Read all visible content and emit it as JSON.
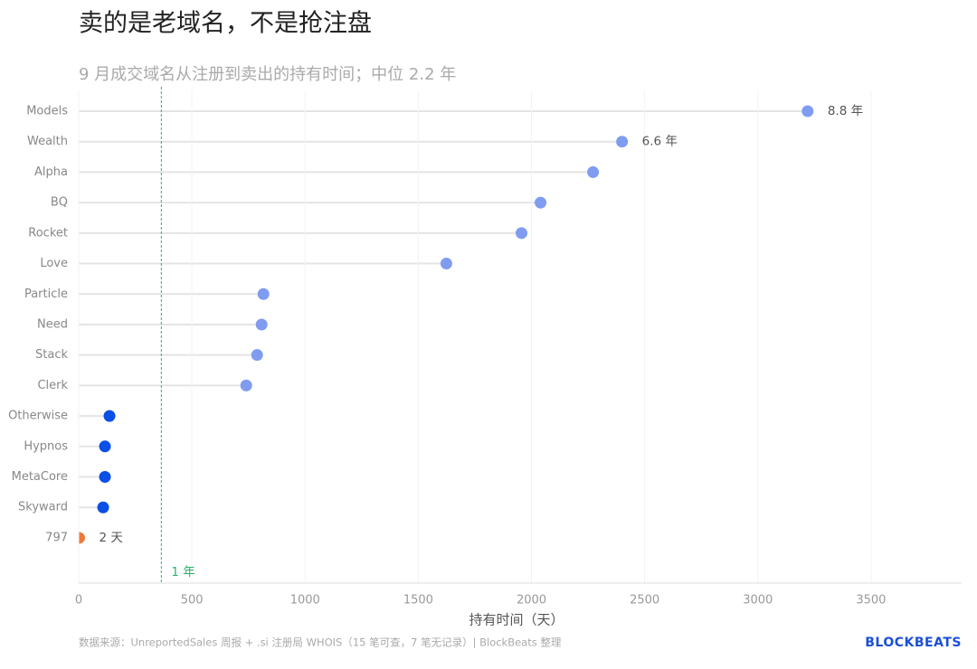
{
  "chart_data": {
    "type": "lollipop",
    "title": "卖的是老域名，不是抢注盘",
    "subtitle": "9 月成交域名从注册到卖出的持有时间；中位 2.2 年",
    "x_label": "持有时间（天）",
    "source": "数据来源：UnreportedSales 周报 + .si 注册局 WHOIS（15 笔可查，7 笔无记录）| BlockBeats 整理",
    "logo": "BLOCKBEATS",
    "categories": [
      "Models",
      "Wealth",
      "Alpha",
      "BQ",
      "Rocket",
      "Love",
      "Particle",
      "Need",
      "Stack",
      "Clerk",
      "Otherwise",
      "Hypnos",
      "MetaCore",
      "Skyward",
      "797"
    ],
    "values": [
      3220,
      2400,
      2272,
      2040,
      1956,
      1624,
      816,
      808,
      788,
      740,
      136,
      116,
      116,
      108,
      2
    ],
    "value_labels": [
      "8.8 年",
      "6.6 年",
      null,
      null,
      null,
      null,
      null,
      null,
      null,
      null,
      null,
      null,
      null,
      null,
      "2 天"
    ],
    "colors": [
      "#7f9cf0",
      "#7f9cf0",
      "#7f9cf0",
      "#7f9cf0",
      "#7f9cf0",
      "#7f9cf0",
      "#7f9cf0",
      "#7f9cf0",
      "#7f9cf0",
      "#7f9cf0",
      "#0a4fe6",
      "#0a4fe6",
      "#0a4fe6",
      "#0a4fe6",
      "#f07a3a"
    ],
    "reference_line": {
      "value": 365,
      "label": "1 年",
      "color": "#2db36a"
    },
    "xlim": [
      0,
      3900
    ],
    "xticks": [
      0,
      500,
      1000,
      1500,
      2000,
      2500,
      3000,
      3500
    ],
    "grid": true
  }
}
